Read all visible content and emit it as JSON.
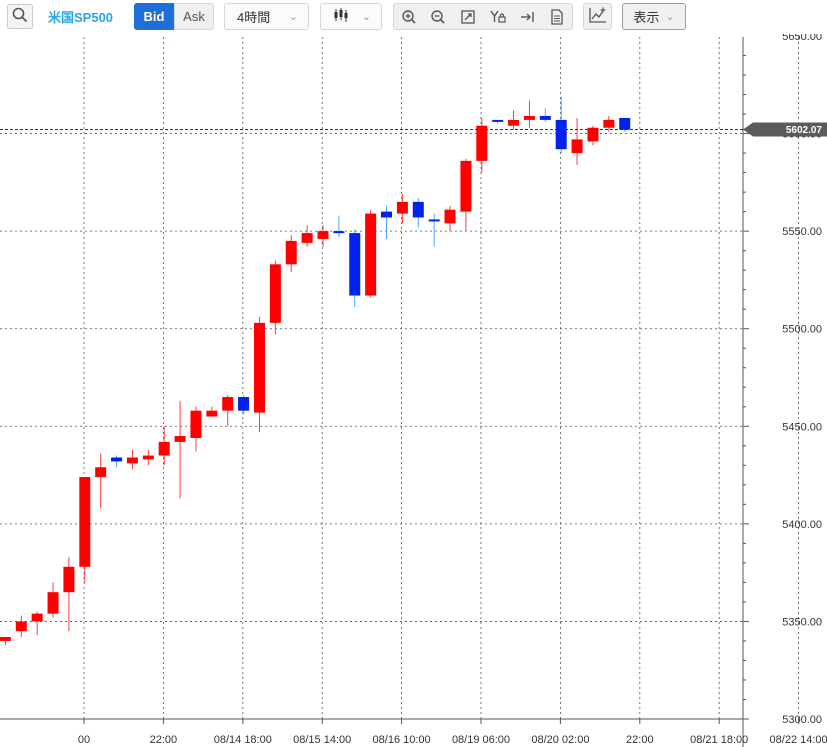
{
  "toolbar": {
    "symbol": "米国SP500",
    "bid_label": "Bid",
    "ask_label": "Ask",
    "interval": "4時間",
    "display_label": "表示",
    "icons": [
      "search-icon",
      "candlestick-icon",
      "zoom-in-icon",
      "zoom-out-icon",
      "fit-screen-icon",
      "y-axis-lock-icon",
      "jump-to-latest-icon",
      "document-icon",
      "add-indicator-icon"
    ]
  },
  "colors": {
    "up": "#ff0000",
    "down": "#0022ee",
    "wick_up": "#ff3b3b",
    "wick_down": "#4aa3ff",
    "price_tag": "#5b5b5b",
    "grid": "#555555"
  },
  "chart_data": {
    "type": "candlestick",
    "ylim": [
      5300,
      5650
    ],
    "y_ticks": [
      5300,
      5350,
      5400,
      5450,
      5500,
      5550,
      5600,
      5650
    ],
    "y_tick_labels": [
      "5300.00",
      "5350.00",
      "5400.00",
      "5450.00",
      "5500.00",
      "5550.00",
      "5600.00",
      "5650.00"
    ],
    "current_price": 5602.07,
    "current_price_label": "5602.07",
    "x_labels": [
      {
        "bar": 4.95,
        "label": "00"
      },
      {
        "bar": 9.95,
        "label": "22:00"
      },
      {
        "bar": 14.95,
        "label": "08/14 18:00"
      },
      {
        "bar": 19.95,
        "label": "08/15 14:00"
      },
      {
        "bar": 24.95,
        "label": "08/16 10:00"
      },
      {
        "bar": 29.95,
        "label": "08/19 06:00"
      },
      {
        "bar": 34.95,
        "label": "08/20 02:00"
      },
      {
        "bar": 39.95,
        "label": "22:00"
      },
      {
        "bar": 44.95,
        "label": "08/21 18:00"
      },
      {
        "bar": 49.95,
        "label": "08/22 14:00"
      }
    ],
    "candles": [
      {
        "o": 5340,
        "h": 5341,
        "l": 5338,
        "c": 5342
      },
      {
        "o": 5345,
        "h": 5353,
        "l": 5342,
        "c": 5350
      },
      {
        "o": 5350,
        "h": 5355,
        "l": 5343,
        "c": 5354
      },
      {
        "o": 5354,
        "h": 5370,
        "l": 5352,
        "c": 5365
      },
      {
        "o": 5365,
        "h": 5383,
        "l": 5345,
        "c": 5378
      },
      {
        "o": 5378,
        "h": 5424,
        "l": 5370,
        "c": 5424
      },
      {
        "o": 5424,
        "h": 5436,
        "l": 5408,
        "c": 5429
      },
      {
        "o": 5434,
        "h": 5435,
        "l": 5429,
        "c": 5432
      },
      {
        "o": 5431,
        "h": 5438,
        "l": 5428,
        "c": 5434
      },
      {
        "o": 5433,
        "h": 5438,
        "l": 5430,
        "c": 5435
      },
      {
        "o": 5435,
        "h": 5450,
        "l": 5430,
        "c": 5442
      },
      {
        "o": 5442,
        "h": 5463,
        "l": 5413,
        "c": 5445
      },
      {
        "o": 5444,
        "h": 5460,
        "l": 5437,
        "c": 5458
      },
      {
        "o": 5455,
        "h": 5460,
        "l": 5455,
        "c": 5458
      },
      {
        "o": 5458,
        "h": 5466,
        "l": 5450,
        "c": 5465
      },
      {
        "o": 5465,
        "h": 5466,
        "l": 5456,
        "c": 5458
      },
      {
        "o": 5457,
        "h": 5506,
        "l": 5447,
        "c": 5503
      },
      {
        "o": 5503,
        "h": 5535,
        "l": 5497,
        "c": 5533
      },
      {
        "o": 5533,
        "h": 5548,
        "l": 5529,
        "c": 5545
      },
      {
        "o": 5544,
        "h": 5553,
        "l": 5542,
        "c": 5549
      },
      {
        "o": 5546,
        "h": 5553,
        "l": 5542,
        "c": 5550
      },
      {
        "o": 5550,
        "h": 5558,
        "l": 5547,
        "c": 5549
      },
      {
        "o": 5549,
        "h": 5551,
        "l": 5511,
        "c": 5517
      },
      {
        "o": 5517,
        "h": 5561,
        "l": 5516,
        "c": 5559
      },
      {
        "o": 5560,
        "h": 5563,
        "l": 5546,
        "c": 5557
      },
      {
        "o": 5559,
        "h": 5569,
        "l": 5554,
        "c": 5565
      },
      {
        "o": 5565,
        "h": 5567,
        "l": 5552,
        "c": 5557
      },
      {
        "o": 5556,
        "h": 5559,
        "l": 5542,
        "c": 5555
      },
      {
        "o": 5554,
        "h": 5563,
        "l": 5550,
        "c": 5561
      },
      {
        "o": 5560,
        "h": 5587,
        "l": 5550,
        "c": 5586
      },
      {
        "o": 5586,
        "h": 5608,
        "l": 5580,
        "c": 5604
      },
      {
        "o": 5607,
        "h": 5607,
        "l": 5605,
        "c": 5606
      },
      {
        "o": 5604,
        "h": 5612,
        "l": 5602,
        "c": 5607
      },
      {
        "o": 5607,
        "h": 5617,
        "l": 5603,
        "c": 5609
      },
      {
        "o": 5609,
        "h": 5613,
        "l": 5606,
        "c": 5607
      },
      {
        "o": 5607,
        "h": 5619,
        "l": 5590,
        "c": 5592
      },
      {
        "o": 5590,
        "h": 5608,
        "l": 5584,
        "c": 5597
      },
      {
        "o": 5596,
        "h": 5604,
        "l": 5594,
        "c": 5603
      },
      {
        "o": 5603,
        "h": 5609,
        "l": 5601,
        "c": 5607
      },
      {
        "o": 5608,
        "h": 5608,
        "l": 5601,
        "c": 5602
      }
    ]
  }
}
